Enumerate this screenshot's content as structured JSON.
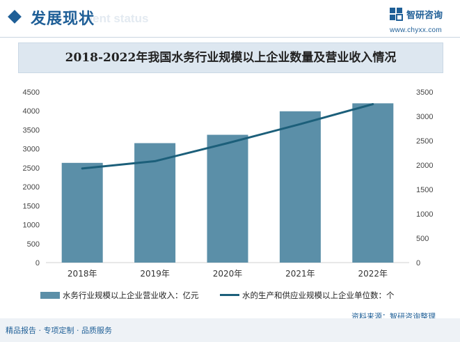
{
  "header": {
    "section_title": "发展现状",
    "section_subtitle": "ment status",
    "brand_name": "智研咨询",
    "brand_url": "www.chyxx.com"
  },
  "footer": {
    "tagline": "精品报告 · 专项定制 · 品质服务",
    "source": "资料来源：智研咨询整理"
  },
  "colors": {
    "bar": "#5b8fa8",
    "line": "#1c5f7a",
    "brand": "#1f5f97"
  },
  "chart_data": {
    "type": "bar",
    "title": "2018-2022年我国水务行业规模以上企业数量及营业收入情况",
    "categories": [
      "2018年",
      "2019年",
      "2020年",
      "2021年",
      "2022年"
    ],
    "series": [
      {
        "name": "水务行业规模以上企业营业收入：亿元",
        "type": "bar",
        "axis": "left",
        "values": [
          2630,
          3150,
          3370,
          3990,
          4200
        ]
      },
      {
        "name": "水的生产和供应业规模以上企业单位数：个",
        "type": "line",
        "axis": "right",
        "values": [
          1930,
          2080,
          2450,
          2840,
          3250
        ]
      }
    ],
    "y_left": {
      "min": 0,
      "max": 4500,
      "step": 500,
      "ticks": [
        "0",
        "500",
        "1000",
        "1500",
        "2000",
        "2500",
        "3000",
        "3500",
        "4000",
        "4500"
      ]
    },
    "y_right": {
      "min": 0,
      "max": 3500,
      "step": 500,
      "ticks": [
        "0",
        "500",
        "1000",
        "1500",
        "2000",
        "2500",
        "3000",
        "3500"
      ]
    },
    "grid": false,
    "legend": "bottom"
  }
}
